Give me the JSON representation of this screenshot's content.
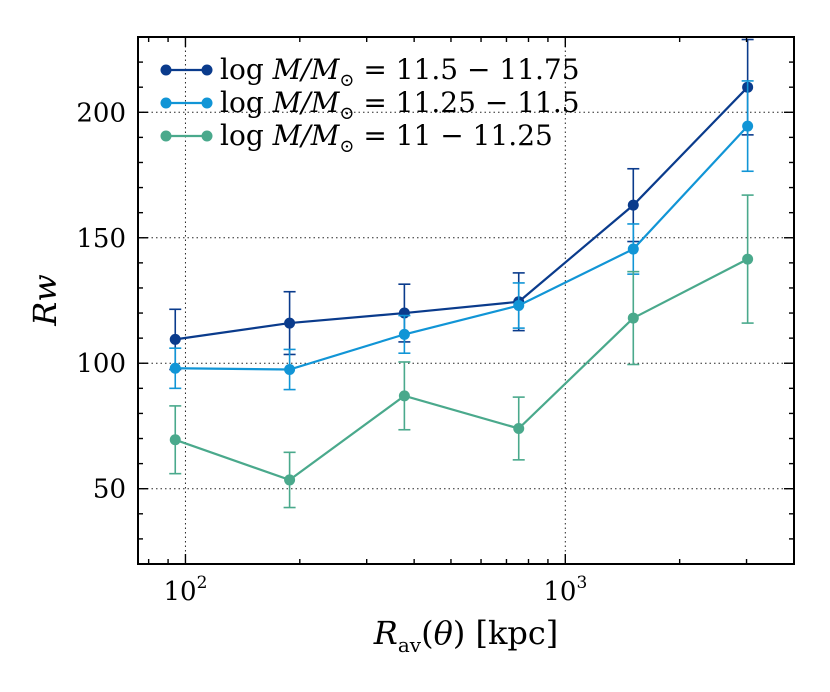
{
  "chart_data": {
    "type": "line",
    "title": "",
    "xlabel": "R_av(θ) [kpc]",
    "ylabel": "Rw",
    "xscale": "log",
    "xlim": [
      75,
      4000
    ],
    "ylim": [
      20,
      230
    ],
    "grid": true,
    "legend_position": "top-left",
    "x_major_ticks": [
      {
        "value": 100,
        "base": "10",
        "exp": "2"
      },
      {
        "value": 1000,
        "base": "10",
        "exp": "3"
      }
    ],
    "y_ticks": [
      50,
      100,
      150,
      200
    ],
    "series": [
      {
        "name": "log M/M⊙ = 11.5 − 11.75",
        "label_parts": {
          "prefix": "log",
          "mass": "M/M",
          "sun": "⊙",
          "range": " = 11.5 − 11.75"
        },
        "color": "#0a3b8c",
        "x": [
          94,
          188,
          377,
          754,
          1510,
          3020
        ],
        "values": [
          109.5,
          116,
          120,
          124.5,
          163,
          210
        ],
        "err": [
          12,
          12.5,
          11.5,
          11.5,
          14.5,
          19
        ]
      },
      {
        "name": "log M/M⊙ = 11.25 − 11.5",
        "label_parts": {
          "prefix": "log",
          "mass": "M/M",
          "sun": "⊙",
          "range": " = 11.25 − 11.5"
        },
        "color": "#1195d6",
        "x": [
          94,
          188,
          377,
          754,
          1510,
          3020
        ],
        "values": [
          98,
          97.5,
          111.5,
          123,
          145.5,
          194.5
        ],
        "err": [
          8,
          8,
          7.5,
          9,
          10,
          18
        ]
      },
      {
        "name": "log M/M⊙ = 11 − 11.25",
        "label_parts": {
          "prefix": "log",
          "mass": "M/M",
          "sun": "⊙",
          "range": " = 11 − 11.25"
        },
        "color": "#4aa98c",
        "x": [
          94,
          188,
          377,
          754,
          1510,
          3020
        ],
        "values": [
          69.5,
          53.5,
          87,
          74,
          118,
          141.5
        ],
        "err": [
          13.5,
          11,
          13.5,
          12.5,
          18.5,
          25.5
        ]
      }
    ]
  }
}
